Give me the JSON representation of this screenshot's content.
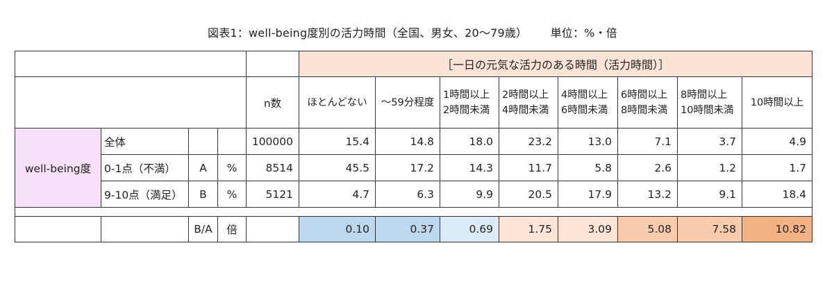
{
  "title": {
    "main": "図表1：well-being度別の活力時間（全国、男女、20～79歳）",
    "unit": "単位：%・倍"
  },
  "header": {
    "band": "［一日の元気な活力のある時間（活力時間）］",
    "n_label": "n数",
    "columns": [
      {
        "line1": "ほとんどない",
        "line2": ""
      },
      {
        "line1": "～59分程度",
        "line2": ""
      },
      {
        "line1": "1時間以上",
        "line2": "2時間未満"
      },
      {
        "line1": "2時間以上",
        "line2": "4時間未満"
      },
      {
        "line1": "4時間以上",
        "line2": "6時間未満"
      },
      {
        "line1": "6時間以上",
        "line2": "8時間未満"
      },
      {
        "line1": "8時間以上",
        "line2": "10時間未満"
      },
      {
        "line1": "10時間以上",
        "line2": ""
      }
    ]
  },
  "group_label": "well-being度",
  "rows": [
    {
      "label": "全体",
      "code": "",
      "unit": "",
      "n": "100000",
      "values": [
        "15.4",
        "14.8",
        "18.0",
        "23.2",
        "13.0",
        "7.1",
        "3.7",
        "4.9"
      ]
    },
    {
      "label": "0-1点（不満）",
      "code": "A",
      "unit": "%",
      "n": "8514",
      "values": [
        "45.5",
        "17.2",
        "14.3",
        "11.7",
        "5.8",
        "2.6",
        "1.2",
        "1.7"
      ]
    },
    {
      "label": "9-10点（満足）",
      "code": "B",
      "unit": "%",
      "n": "5121",
      "values": [
        "4.7",
        "6.3",
        "9.9",
        "20.5",
        "17.9",
        "13.2",
        "9.1",
        "18.4"
      ]
    }
  ],
  "ratio_row": {
    "code": "B/A",
    "unit": "倍",
    "values": [
      "0.10",
      "0.37",
      "0.69",
      "1.75",
      "3.09",
      "5.08",
      "7.58",
      "10.82"
    ],
    "colors": [
      "#bdd7ee",
      "#bdd7ee",
      "#ddebf7",
      "#fce4d6",
      "#fce4d6",
      "#f8cbad",
      "#f8cbad",
      "#f4b183"
    ]
  }
}
